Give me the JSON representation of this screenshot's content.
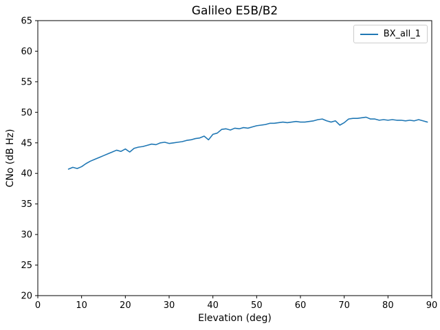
{
  "chart_data": {
    "type": "line",
    "title": "Galileo E5B/B2",
    "xlabel": "Elevation (deg)",
    "ylabel": "CNo (dB Hz)",
    "xlim": [
      0,
      90
    ],
    "ylim": [
      20,
      65
    ],
    "xticks": [
      0,
      10,
      20,
      30,
      40,
      50,
      60,
      70,
      80,
      90
    ],
    "yticks": [
      20,
      25,
      30,
      35,
      40,
      45,
      50,
      55,
      60,
      65
    ],
    "grid": false,
    "legend_position": "upper right",
    "x": [
      7,
      8,
      9,
      10,
      11,
      12,
      13,
      14,
      15,
      16,
      17,
      18,
      19,
      20,
      21,
      22,
      23,
      24,
      25,
      26,
      27,
      28,
      29,
      30,
      31,
      32,
      33,
      34,
      35,
      36,
      37,
      38,
      39,
      40,
      41,
      42,
      43,
      44,
      45,
      46,
      47,
      48,
      49,
      50,
      51,
      52,
      53,
      54,
      55,
      56,
      57,
      58,
      59,
      60,
      61,
      62,
      63,
      64,
      65,
      66,
      67,
      68,
      69,
      70,
      71,
      72,
      73,
      74,
      75,
      76,
      77,
      78,
      79,
      80,
      81,
      82,
      83,
      84,
      85,
      86,
      87,
      88,
      89
    ],
    "series": [
      {
        "name": "BX_all_1",
        "color": "#1f77b4",
        "values": [
          40.7,
          41.0,
          40.8,
          41.1,
          41.6,
          42.0,
          42.3,
          42.6,
          42.9,
          43.2,
          43.5,
          43.8,
          43.6,
          44.0,
          43.5,
          44.1,
          44.3,
          44.4,
          44.6,
          44.8,
          44.7,
          45.0,
          45.1,
          44.9,
          45.0,
          45.1,
          45.2,
          45.4,
          45.5,
          45.7,
          45.8,
          46.1,
          45.5,
          46.4,
          46.6,
          47.2,
          47.3,
          47.1,
          47.4,
          47.3,
          47.5,
          47.4,
          47.6,
          47.8,
          47.9,
          48.0,
          48.2,
          48.2,
          48.3,
          48.4,
          48.3,
          48.4,
          48.5,
          48.4,
          48.4,
          48.5,
          48.6,
          48.8,
          48.9,
          48.6,
          48.4,
          48.6,
          47.9,
          48.3,
          48.9,
          49.0,
          49.0,
          49.1,
          49.2,
          48.9,
          48.9,
          48.7,
          48.8,
          48.7,
          48.8,
          48.7,
          48.7,
          48.6,
          48.7,
          48.6,
          48.8,
          48.6,
          48.4
        ]
      }
    ]
  }
}
